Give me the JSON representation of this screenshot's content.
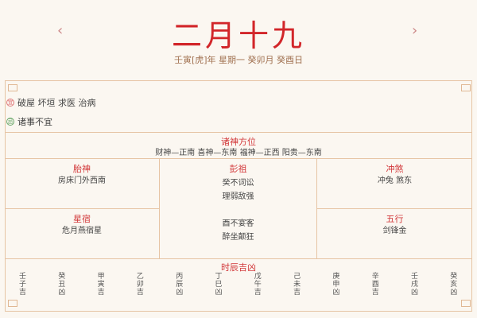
{
  "header": {
    "title": "二月十九",
    "subtitle": "壬寅[虎]年 星期一 癸卯月 癸酉日",
    "prev": "‹",
    "next": "›"
  },
  "yi": {
    "icon": "宜",
    "text": "破屋 坏垣 求医 治病",
    "color": "#e07a7a"
  },
  "ji": {
    "icon": "忌",
    "text": "诸事不宜",
    "color": "#6aa86a"
  },
  "zhushen": {
    "title": "诸神方位",
    "text": "财神—正南 喜神—东南 福神—正西 阳贵—东南"
  },
  "taishen": {
    "title": "胎神",
    "text": "房床门外西南"
  },
  "pengzu": {
    "title": "彭祖",
    "lines": [
      "癸不词讼",
      "理弱敌强",
      "",
      "酉不宴客",
      "醉坐颠狂"
    ]
  },
  "chongsha": {
    "title": "冲煞",
    "text": "冲兔 煞东"
  },
  "xingsu": {
    "title": "星宿",
    "text": "危月燕宿星"
  },
  "wuxing": {
    "title": "五行",
    "text": "剑锋金"
  },
  "shichen": {
    "title": "时辰吉凶",
    "hours": [
      "壬子吉",
      "癸丑凶",
      "甲寅吉",
      "乙卯吉",
      "丙辰凶",
      "丁巳凶",
      "戊午吉",
      "己未吉",
      "庚申凶",
      "辛酉吉",
      "壬戌凶",
      "癸亥凶"
    ]
  }
}
